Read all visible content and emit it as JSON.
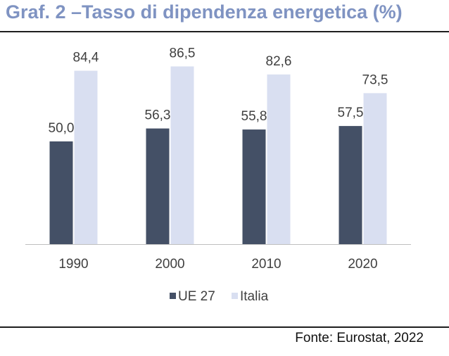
{
  "title": "Graf. 2 –Tasso di dipendenza energetica (%)",
  "source": "Fonte: Eurostat, 2022",
  "colors": {
    "title": "#7f93c2",
    "ue27": "#445066",
    "italia": "#d9dff1",
    "axis": "#bfbfbf",
    "label": "#404040"
  },
  "chart_data": {
    "type": "bar",
    "categories": [
      "1990",
      "2000",
      "2010",
      "2020"
    ],
    "series": [
      {
        "name": "UE 27",
        "values": [
          50.0,
          56.3,
          55.8,
          57.5
        ],
        "labels": [
          "50,0",
          "56,3",
          "55,8",
          "57,5"
        ]
      },
      {
        "name": "Italia",
        "values": [
          84.4,
          86.5,
          82.6,
          73.5
        ],
        "labels": [
          "84,4",
          "86,5",
          "82,6",
          "73,5"
        ]
      }
    ],
    "ylim": [
      0,
      100
    ],
    "grid": false,
    "legend": "bottom"
  }
}
